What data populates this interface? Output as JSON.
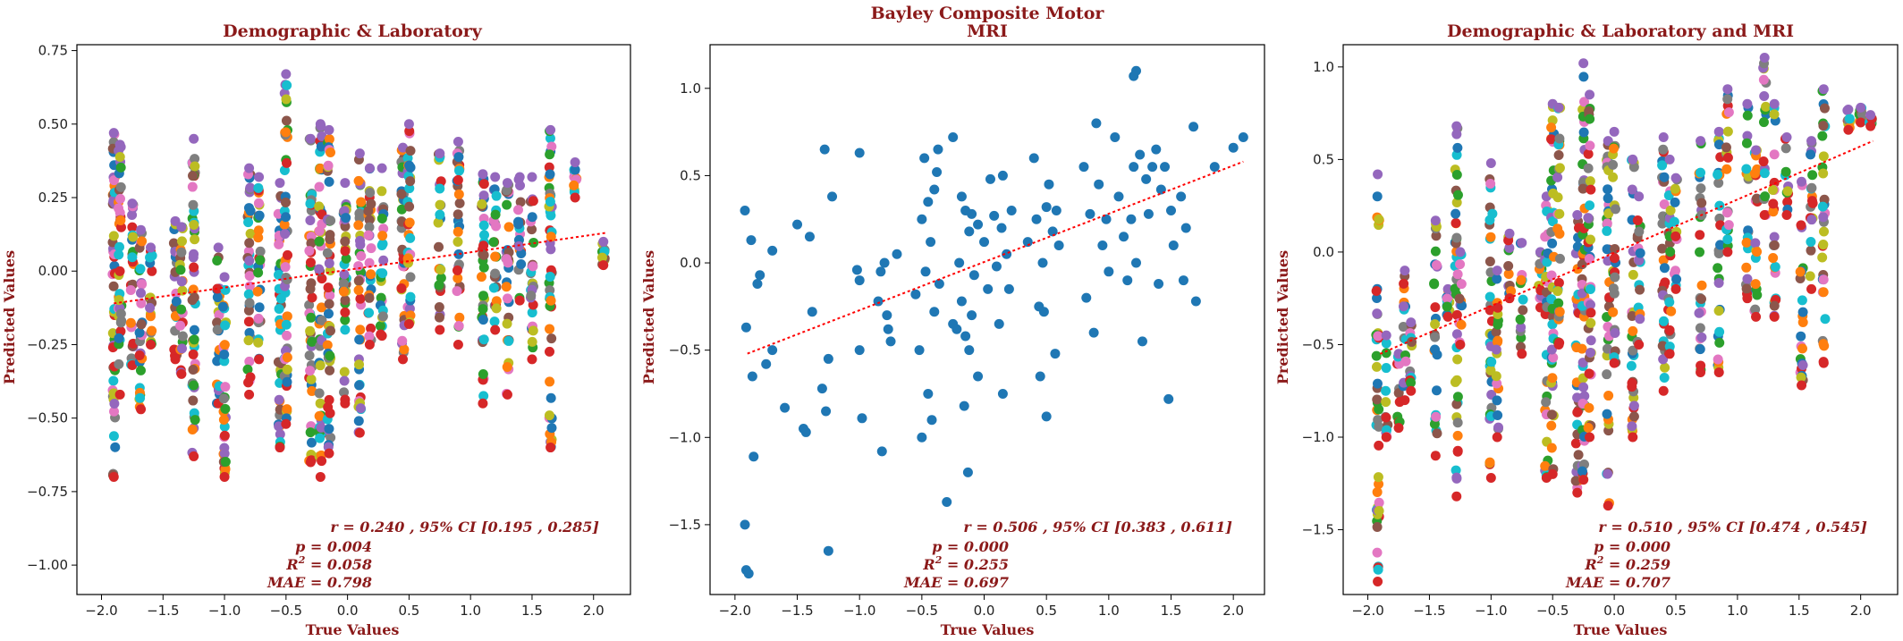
{
  "figure": {
    "suptitle_line1": "Bayley Composite Motor"
  },
  "palette": [
    "#1f77b4",
    "#ff7f0e",
    "#2ca02c",
    "#d62728",
    "#9467bd",
    "#8c564b",
    "#e377c2",
    "#7f7f7f",
    "#bcbd22",
    "#17becf"
  ],
  "chart_data": [
    {
      "type": "scatter",
      "title": "Demographic & Laboratory",
      "xlabel": "True Values",
      "ylabel": "Predicted Values",
      "xlim": [
        -2.2,
        2.3
      ],
      "ylim": [
        -1.1,
        0.77
      ],
      "xticks": [
        -2.0,
        -1.5,
        -1.0,
        -0.5,
        0.0,
        0.5,
        1.0,
        1.5,
        2.0
      ],
      "xtick_labels": [
        "−2.0",
        "−1.5",
        "−1.0",
        "−0.5",
        "0.0",
        "0.5",
        "1.0",
        "1.5",
        "2.0"
      ],
      "yticks": [
        -1.0,
        -0.75,
        -0.5,
        -0.25,
        0.0,
        0.25,
        0.5,
        0.75
      ],
      "ytick_labels": [
        "−1.00",
        "−0.75",
        "−0.50",
        "−0.25",
        "0.00",
        "0.25",
        "0.50",
        "0.75"
      ],
      "multicolor": true,
      "trend": {
        "x1": -1.9,
        "y1": -0.11,
        "x2": 2.1,
        "y2": 0.13,
        "color": "#ff0000"
      },
      "stats": {
        "r": "r = 0.240 , 95% CI [0.195 , 0.285]",
        "p": "p = 0.004",
        "r2_prefix": "R",
        "r2_sup": "2",
        "r2_value": " = 0.058",
        "mae": "MAE = 0.798"
      },
      "columns": [
        [
          -1.9,
          -0.7,
          0.47
        ],
        [
          -1.85,
          -0.42,
          0.43
        ],
        [
          -1.75,
          -0.32,
          0.23
        ],
        [
          -1.68,
          -0.47,
          0.14
        ],
        [
          -1.6,
          -0.25,
          0.08
        ],
        [
          -1.4,
          -0.3,
          0.17
        ],
        [
          -1.35,
          -0.35,
          0.15
        ],
        [
          -1.25,
          -0.63,
          0.45
        ],
        [
          -1.05,
          -0.45,
          0.08
        ],
        [
          -1.0,
          -0.7,
          -0.02
        ],
        [
          -0.8,
          -0.42,
          0.35
        ],
        [
          -0.72,
          -0.3,
          0.32
        ],
        [
          -0.55,
          -0.6,
          0.3
        ],
        [
          -0.5,
          -0.52,
          0.67
        ],
        [
          -0.3,
          -0.65,
          0.45
        ],
        [
          -0.22,
          -0.7,
          0.5
        ],
        [
          -0.15,
          -0.62,
          0.48
        ],
        [
          -0.02,
          -0.45,
          0.3
        ],
        [
          0.1,
          -0.55,
          0.4
        ],
        [
          0.18,
          -0.25,
          0.35
        ],
        [
          0.28,
          -0.22,
          0.35
        ],
        [
          0.45,
          -0.3,
          0.42
        ],
        [
          0.5,
          -0.18,
          0.5
        ],
        [
          0.75,
          -0.2,
          0.4
        ],
        [
          0.9,
          -0.25,
          0.44
        ],
        [
          1.1,
          -0.45,
          0.33
        ],
        [
          1.2,
          -0.2,
          0.32
        ],
        [
          1.3,
          -0.42,
          0.3
        ],
        [
          1.4,
          -0.1,
          0.32
        ],
        [
          1.5,
          -0.3,
          0.32
        ],
        [
          1.65,
          -0.6,
          0.48
        ],
        [
          1.85,
          0.25,
          0.37
        ],
        [
          2.08,
          0.02,
          0.1
        ]
      ]
    },
    {
      "type": "scatter",
      "title": "MRI",
      "xlabel": "True Values",
      "ylabel": "Predicted Values",
      "xlim": [
        -2.2,
        2.25
      ],
      "ylim": [
        -1.9,
        1.25
      ],
      "xticks": [
        -2.0,
        -1.5,
        -1.0,
        -0.5,
        0.0,
        0.5,
        1.0,
        1.5,
        2.0
      ],
      "xtick_labels": [
        "−2.0",
        "−1.5",
        "−1.0",
        "−0.5",
        "0.0",
        "0.5",
        "1.0",
        "1.5",
        "2.0"
      ],
      "yticks": [
        -1.5,
        -1.0,
        -0.5,
        0.0,
        0.5,
        1.0
      ],
      "ytick_labels": [
        "−1.5",
        "−1.0",
        "−0.5",
        "0.0",
        "0.5",
        "1.0"
      ],
      "multicolor": false,
      "trend": {
        "x1": -1.9,
        "y1": -0.52,
        "x2": 2.08,
        "y2": 0.58,
        "color": "#ff0000"
      },
      "stats": {
        "r": "r = 0.506 , 95% CI [0.383 , 0.611]",
        "p": "p = 0.000",
        "r2_prefix": "R",
        "r2_sup": "2",
        "r2_value": " = 0.255",
        "mae": "MAE = 0.697"
      },
      "points": [
        [
          -1.92,
          0.3
        ],
        [
          -1.91,
          -0.37
        ],
        [
          -1.92,
          -1.5
        ],
        [
          -1.91,
          -1.76
        ],
        [
          -1.89,
          -1.78
        ],
        [
          -1.87,
          0.13
        ],
        [
          -1.86,
          -0.65
        ],
        [
          -1.85,
          -1.11
        ],
        [
          -1.82,
          -0.12
        ],
        [
          -1.8,
          -0.07
        ],
        [
          -1.75,
          -0.58
        ],
        [
          -1.7,
          0.07
        ],
        [
          -1.7,
          -0.5
        ],
        [
          -1.6,
          -0.83
        ],
        [
          -1.5,
          0.22
        ],
        [
          -1.45,
          -0.95
        ],
        [
          -1.43,
          -0.97
        ],
        [
          -1.4,
          0.15
        ],
        [
          -1.38,
          -0.28
        ],
        [
          -1.3,
          -0.72
        ],
        [
          -1.28,
          0.65
        ],
        [
          -1.27,
          -0.85
        ],
        [
          -1.25,
          -1.65
        ],
        [
          -1.25,
          -0.55
        ],
        [
          -1.22,
          0.38
        ],
        [
          -1.0,
          0.63
        ],
        [
          -1.0,
          -0.5
        ],
        [
          -1.02,
          -0.04
        ],
        [
          -1.0,
          -0.1
        ],
        [
          -0.98,
          -0.89
        ],
        [
          -0.85,
          -0.22
        ],
        [
          -0.83,
          -0.05
        ],
        [
          -0.82,
          -1.08
        ],
        [
          -0.8,
          0.0
        ],
        [
          -0.78,
          -0.3
        ],
        [
          -0.77,
          -0.38
        ],
        [
          -0.75,
          -0.45
        ],
        [
          -0.7,
          0.05
        ],
        [
          -0.55,
          -0.18
        ],
        [
          -0.52,
          -0.5
        ],
        [
          -0.5,
          0.25
        ],
        [
          -0.5,
          -1.0
        ],
        [
          -0.48,
          0.6
        ],
        [
          -0.47,
          -0.05
        ],
        [
          -0.45,
          0.35
        ],
        [
          -0.45,
          -0.75
        ],
        [
          -0.43,
          0.12
        ],
        [
          -0.42,
          -0.9
        ],
        [
          -0.4,
          0.42
        ],
        [
          -0.4,
          -0.28
        ],
        [
          -0.38,
          0.52
        ],
        [
          -0.37,
          0.65
        ],
        [
          -0.36,
          -0.12
        ],
        [
          -0.3,
          -1.37
        ],
        [
          -0.25,
          0.72
        ],
        [
          -0.25,
          -0.35
        ],
        [
          -0.22,
          -0.38
        ],
        [
          -0.2,
          0.0
        ],
        [
          -0.18,
          0.38
        ],
        [
          -0.18,
          -0.22
        ],
        [
          -0.16,
          -0.82
        ],
        [
          -0.15,
          0.3
        ],
        [
          -0.15,
          -0.42
        ],
        [
          -0.13,
          -1.2
        ],
        [
          -0.12,
          0.18
        ],
        [
          -0.12,
          -0.5
        ],
        [
          -0.1,
          0.28
        ],
        [
          -0.1,
          -0.3
        ],
        [
          -0.08,
          -0.07
        ],
        [
          -0.05,
          0.22
        ],
        [
          -0.05,
          -0.65
        ],
        [
          0.0,
          0.12
        ],
        [
          0.03,
          -0.15
        ],
        [
          0.05,
          0.48
        ],
        [
          0.08,
          0.27
        ],
        [
          0.1,
          -0.02
        ],
        [
          0.12,
          -0.35
        ],
        [
          0.14,
          0.2
        ],
        [
          0.15,
          0.5
        ],
        [
          0.15,
          -0.75
        ],
        [
          0.18,
          0.05
        ],
        [
          0.2,
          -0.15
        ],
        [
          0.22,
          0.3
        ],
        [
          0.35,
          0.12
        ],
        [
          0.4,
          0.6
        ],
        [
          0.42,
          0.25
        ],
        [
          0.44,
          -0.25
        ],
        [
          0.45,
          -0.65
        ],
        [
          0.47,
          0.0
        ],
        [
          0.48,
          -0.28
        ],
        [
          0.5,
          0.32
        ],
        [
          0.5,
          -0.88
        ],
        [
          0.52,
          0.45
        ],
        [
          0.55,
          0.18
        ],
        [
          0.57,
          -0.52
        ],
        [
          0.58,
          0.3
        ],
        [
          0.6,
          0.1
        ],
        [
          0.8,
          0.55
        ],
        [
          0.82,
          -0.2
        ],
        [
          0.85,
          0.28
        ],
        [
          0.88,
          -0.4
        ],
        [
          0.9,
          0.8
        ],
        [
          0.92,
          0.45
        ],
        [
          0.95,
          0.1
        ],
        [
          0.98,
          0.25
        ],
        [
          1.0,
          -0.05
        ],
        [
          1.05,
          0.72
        ],
        [
          1.08,
          0.38
        ],
        [
          1.12,
          0.15
        ],
        [
          1.15,
          -0.1
        ],
        [
          1.18,
          0.25
        ],
        [
          1.2,
          1.07
        ],
        [
          1.2,
          0.55
        ],
        [
          1.22,
          1.1
        ],
        [
          1.22,
          0.0
        ],
        [
          1.25,
          0.62
        ],
        [
          1.27,
          -0.45
        ],
        [
          1.3,
          0.48
        ],
        [
          1.32,
          0.28
        ],
        [
          1.35,
          0.55
        ],
        [
          1.38,
          0.65
        ],
        [
          1.4,
          -0.12
        ],
        [
          1.42,
          0.42
        ],
        [
          1.45,
          0.55
        ],
        [
          1.48,
          -0.78
        ],
        [
          1.5,
          0.3
        ],
        [
          1.52,
          0.1
        ],
        [
          1.58,
          0.38
        ],
        [
          1.6,
          -0.1
        ],
        [
          1.62,
          0.2
        ],
        [
          1.68,
          0.78
        ],
        [
          1.7,
          -0.22
        ],
        [
          1.85,
          0.55
        ],
        [
          2.0,
          0.66
        ],
        [
          2.08,
          0.72
        ]
      ]
    },
    {
      "type": "scatter",
      "title": "Demographic & Laboratory and MRI",
      "xlabel": "True Values",
      "ylabel": "Predicted Values",
      "xlim": [
        -2.2,
        2.3
      ],
      "ylim": [
        -1.85,
        1.12
      ],
      "xticks": [
        -2.0,
        -1.5,
        -1.0,
        -0.5,
        0.0,
        0.5,
        1.0,
        1.5,
        2.0
      ],
      "xtick_labels": [
        "−2.0",
        "−1.5",
        "−1.0",
        "−0.5",
        "0.0",
        "0.5",
        "1.0",
        "1.5",
        "2.0"
      ],
      "yticks": [
        -1.5,
        -1.0,
        -0.5,
        0.0,
        0.5,
        1.0
      ],
      "ytick_labels": [
        "−1.5",
        "−1.0",
        "−0.5",
        "0.0",
        "0.5",
        "1.0"
      ],
      "multicolor": true,
      "trend": {
        "x1": -1.9,
        "y1": -0.55,
        "x2": 2.1,
        "y2": 0.6,
        "color": "#ff0000"
      },
      "stats": {
        "r": "r = 0.510 , 95% CI [0.474 , 0.545]",
        "p": "p = 0.000",
        "r2_prefix": "R",
        "r2_sup": "2",
        "r2_value": " = 0.259",
        "mae": "MAE = 0.707"
      },
      "columns": [
        [
          -1.92,
          -1.78,
          0.42
        ],
        [
          -1.85,
          -1.0,
          -0.45
        ],
        [
          -1.75,
          -0.95,
          -0.55
        ],
        [
          -1.7,
          -0.8,
          -0.1
        ],
        [
          -1.65,
          -0.75,
          -0.38
        ],
        [
          -1.45,
          -1.1,
          0.17
        ],
        [
          -1.35,
          -0.35,
          -0.2
        ],
        [
          -1.28,
          -1.32,
          0.68
        ],
        [
          -1.25,
          -0.5,
          0.0
        ],
        [
          -1.0,
          -1.22,
          0.48
        ],
        [
          -0.95,
          -1.0,
          -0.1
        ],
        [
          -0.85,
          -0.25,
          0.1
        ],
        [
          -0.75,
          -0.55,
          0.05
        ],
        [
          -0.6,
          -0.3,
          0.0
        ],
        [
          -0.55,
          -1.22,
          0.3
        ],
        [
          -0.5,
          -1.2,
          0.8
        ],
        [
          -0.45,
          -0.5,
          0.78
        ],
        [
          -0.3,
          -1.3,
          0.2
        ],
        [
          -0.25,
          -1.23,
          1.02
        ],
        [
          -0.2,
          -1.0,
          0.85
        ],
        [
          -0.05,
          -1.37,
          0.6
        ],
        [
          0.0,
          -0.6,
          0.65
        ],
        [
          0.15,
          -1.0,
          0.5
        ],
        [
          0.2,
          -0.5,
          0.3
        ],
        [
          0.4,
          -0.75,
          0.62
        ],
        [
          0.45,
          -0.55,
          0.5
        ],
        [
          0.5,
          -0.2,
          0.4
        ],
        [
          0.7,
          -0.65,
          0.6
        ],
        [
          0.85,
          -0.65,
          0.65
        ],
        [
          0.92,
          0.0,
          0.88
        ],
        [
          1.08,
          -0.25,
          0.8
        ],
        [
          1.15,
          -0.35,
          0.55
        ],
        [
          1.22,
          0.2,
          1.05
        ],
        [
          1.3,
          -0.35,
          0.8
        ],
        [
          1.4,
          0.2,
          0.62
        ],
        [
          1.52,
          -0.72,
          0.38
        ],
        [
          1.6,
          -0.2,
          0.6
        ],
        [
          1.7,
          -0.6,
          0.88
        ],
        [
          1.9,
          0.66,
          0.77
        ],
        [
          2.0,
          0.7,
          0.78
        ],
        [
          2.08,
          0.68,
          0.74
        ]
      ]
    }
  ]
}
